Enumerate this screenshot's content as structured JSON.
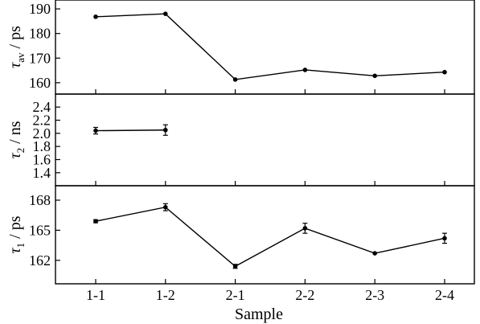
{
  "chart_data": {
    "type": "line",
    "categories": [
      "1-1",
      "1-2",
      "2-1",
      "2-2",
      "2-3",
      "2-4"
    ],
    "xlabel": "Sample",
    "panels": [
      {
        "id": "tau-av",
        "ylabel_sym": "τ",
        "ylabel_sub": "av",
        "ylabel_unit": " / ps",
        "ylim": [
          158,
          191
        ],
        "yticks": [
          160,
          170,
          180,
          190
        ],
        "series": [
          {
            "values": [
              186.8,
              188.0,
              161.3,
              165.2,
              162.8,
              164.3
            ],
            "errors": [
              0,
              0,
              0,
              0,
              0,
              0
            ]
          }
        ]
      },
      {
        "id": "tau-2",
        "ylabel_sym": "τ",
        "ylabel_sub": "2",
        "ylabel_unit": " / ns",
        "ylim": [
          1.3,
          2.5
        ],
        "yticks": [
          1.4,
          1.6,
          1.8,
          2.0,
          2.2,
          2.4
        ],
        "yticklabels": [
          "1.4",
          "1.6",
          "1.8",
          "2.0",
          "2.2",
          "2.4"
        ],
        "series": [
          {
            "values": [
              2.04,
              2.05,
              null,
              null,
              null,
              null
            ],
            "errors": [
              0.05,
              0.08,
              0,
              0,
              0,
              0
            ]
          }
        ]
      },
      {
        "id": "tau-1",
        "ylabel_sym": "τ",
        "ylabel_sub": "1",
        "ylabel_unit": " / ps",
        "ylim": [
          160.3,
          168.8
        ],
        "yticks": [
          162,
          165,
          168
        ],
        "series": [
          {
            "values": [
              165.9,
              167.3,
              161.4,
              165.2,
              162.7,
              164.2
            ],
            "errors": [
              0.15,
              0.35,
              0.2,
              0.5,
              0,
              0.5
            ]
          }
        ]
      }
    ]
  }
}
